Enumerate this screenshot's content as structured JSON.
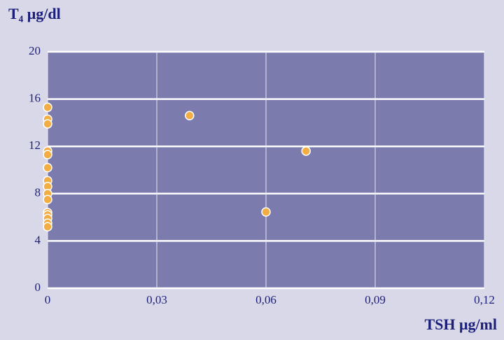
{
  "chart_data": {
    "type": "scatter",
    "xlabel": "TSH μg/ml",
    "ylabel": "T₄ μg/dl",
    "x": [
      0,
      0,
      0,
      0,
      0,
      0,
      0,
      0,
      0,
      0,
      0,
      0,
      0,
      0,
      0,
      0.039,
      0.06,
      0.071
    ],
    "values": [
      15.3,
      14.3,
      13.9,
      11.6,
      11.3,
      10.2,
      9.1,
      8.6,
      8.0,
      7.5,
      6.4,
      6.2,
      5.9,
      5.5,
      5.2,
      14.6,
      6.45,
      11.6
    ],
    "color": "#f2ad45",
    "xlim": [
      0,
      0.12
    ],
    "xticks": [
      0,
      {
        "value": 0.03,
        "label": "0,03"
      },
      {
        "value": 0.06,
        "label": "0,06"
      },
      {
        "value": 0.09,
        "label": "0,09"
      },
      {
        "value": 0.12,
        "label": "0,12"
      }
    ],
    "ylim": [
      0,
      20
    ],
    "yticks": [
      0,
      4,
      8,
      12,
      16,
      20
    ],
    "grid": true
  }
}
